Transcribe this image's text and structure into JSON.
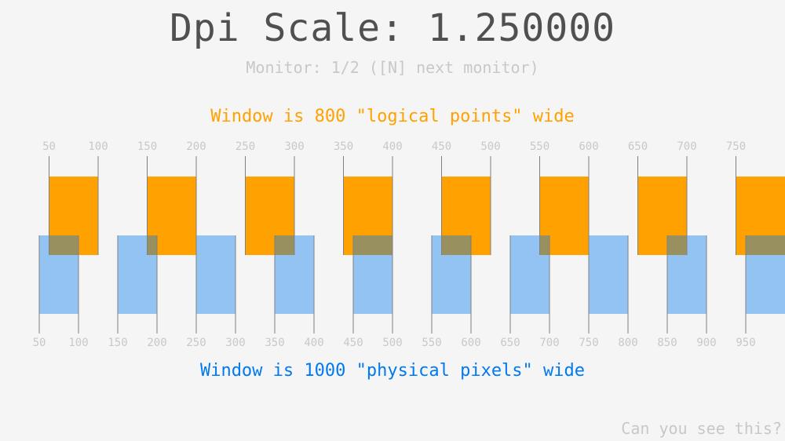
{
  "title": "Dpi Scale: 1.250000",
  "dpi_scale": 1.25,
  "monitor_text": "Monitor: 1/2 ([N] next monitor)",
  "logical_text": "Window is 800 \"logical points\" wide",
  "physical_text": "Window is 1000 \"physical pixels\" wide",
  "corner_text": "Can you see this?",
  "logical_ticks": [
    "50",
    "100",
    "150",
    "200",
    "250",
    "300",
    "350",
    "400",
    "450",
    "500",
    "550",
    "600",
    "650",
    "700",
    "750"
  ],
  "physical_ticks": [
    "50",
    "100",
    "150",
    "200",
    "250",
    "300",
    "350",
    "400",
    "450",
    "500",
    "550",
    "600",
    "650",
    "700",
    "750",
    "800",
    "850",
    "900",
    "950"
  ],
  "colors": {
    "logical": "#ffa100",
    "physical": "#0079f1",
    "title": "#505050",
    "label": "#c8c8c8",
    "tick_line": "#808080",
    "background": "#f5f5f5"
  }
}
